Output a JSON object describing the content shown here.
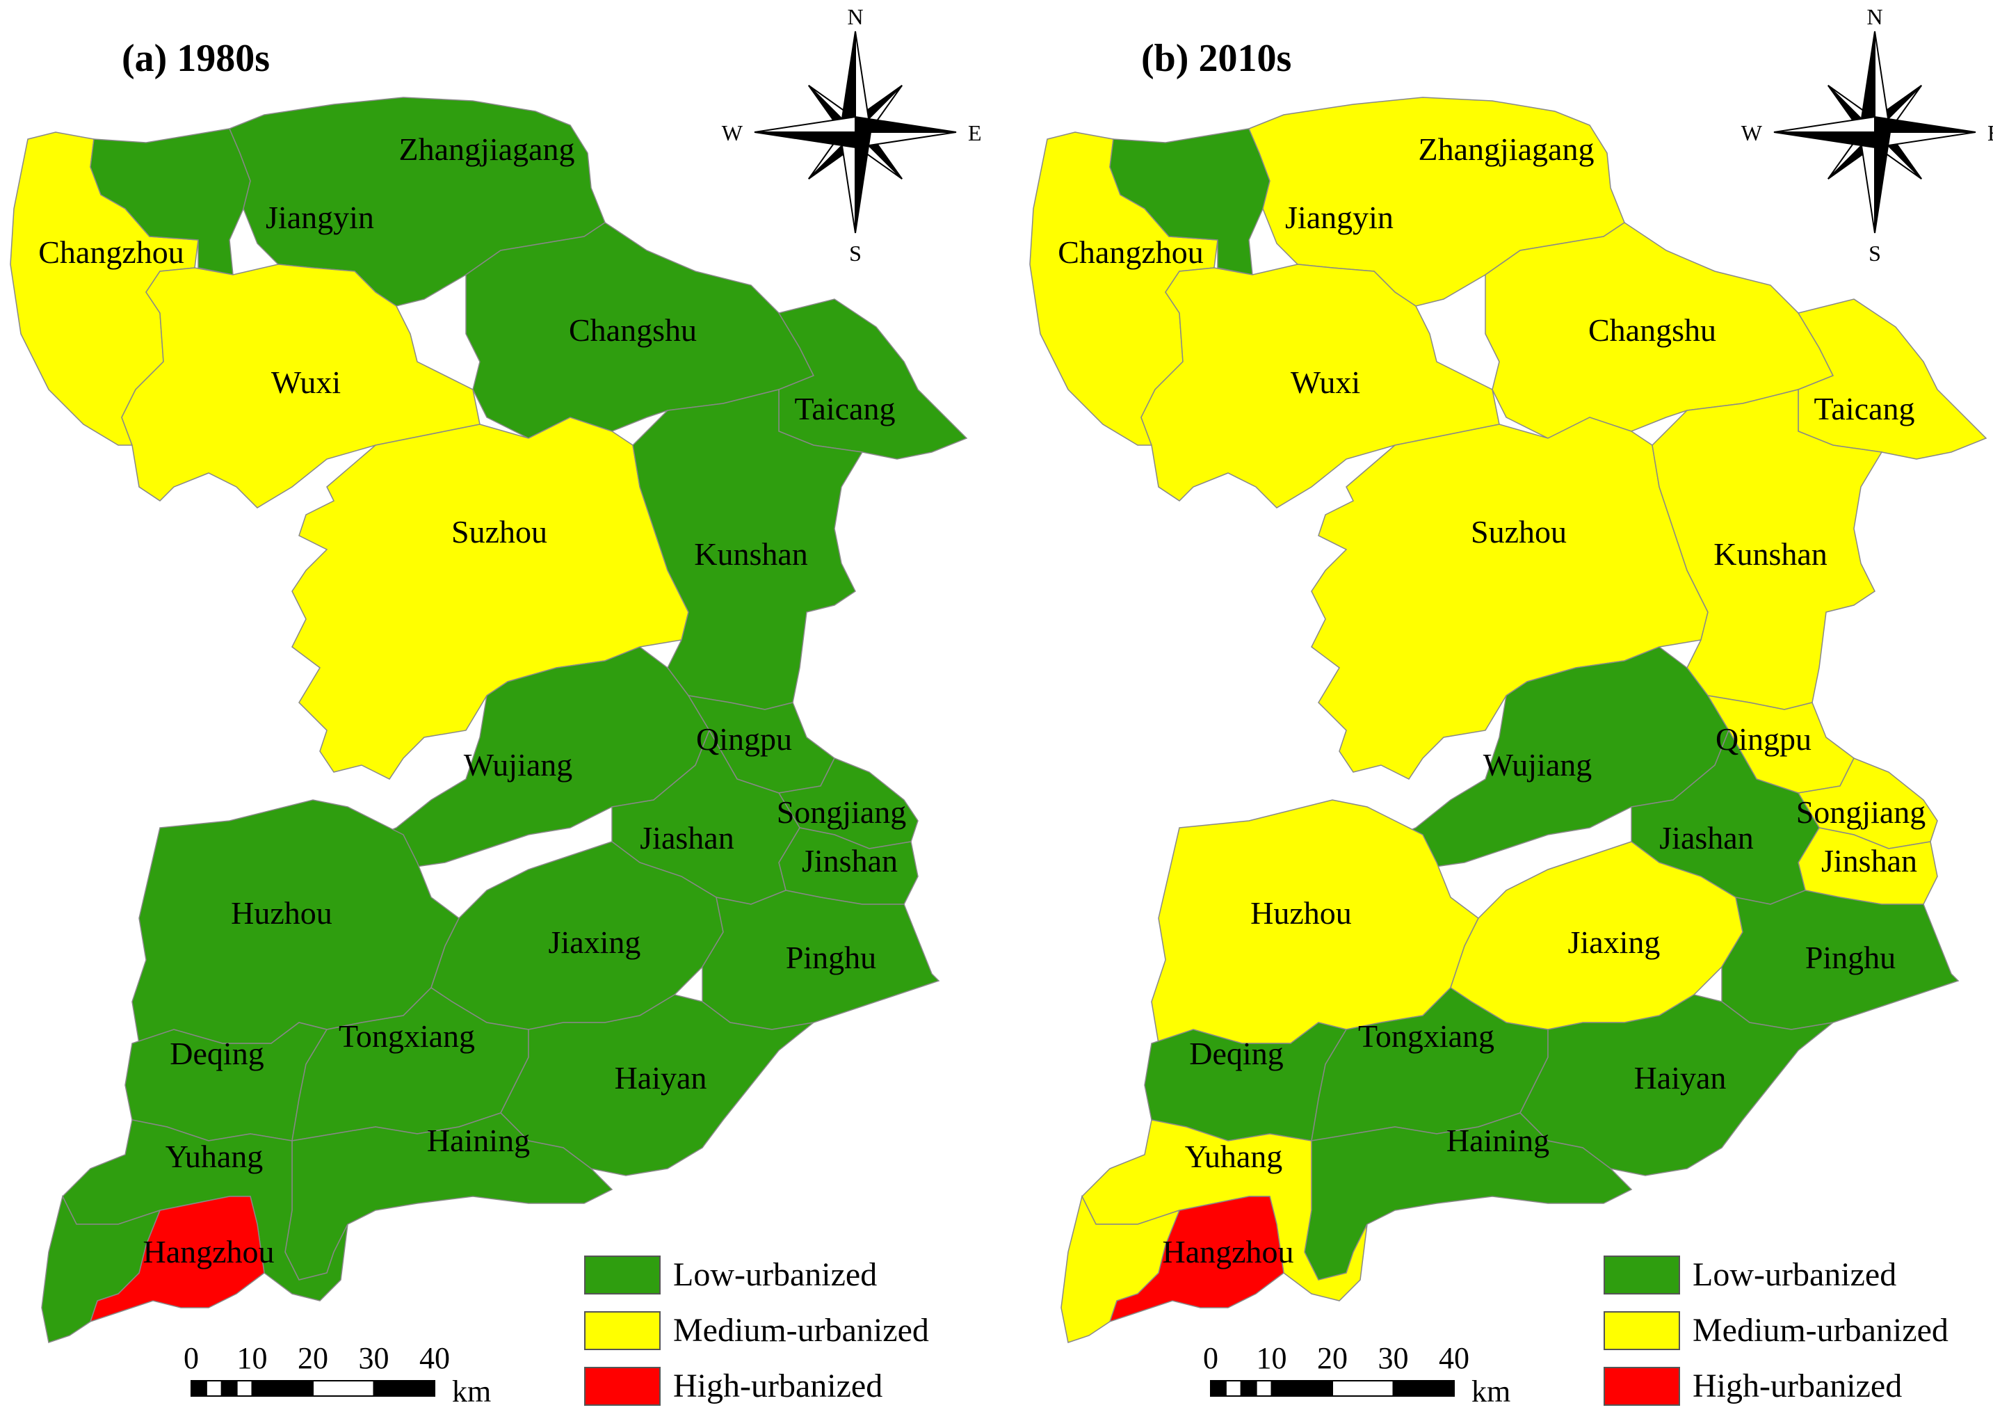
{
  "colors": {
    "low": "#2f9e0f",
    "medium": "#ffff00",
    "high": "#ff0000",
    "boundary": "#888888"
  },
  "legend": [
    {
      "label": "Low-urbanized",
      "class": "low"
    },
    {
      "label": "Medium-urbanized",
      "class": "medium"
    },
    {
      "label": "High-urbanized",
      "class": "high"
    }
  ],
  "scale": {
    "ticks": [
      "0",
      "10",
      "20",
      "30",
      "40"
    ],
    "unit": "km"
  },
  "compass": {
    "n": "N",
    "s": "S",
    "e": "E",
    "w": "W"
  },
  "panels": [
    {
      "title": "(a) 1980s",
      "regions": {
        "Changzhou": "medium",
        "Jiangyin": "low",
        "Zhangjiagang": "low",
        "Wuxi": "medium",
        "Changshu": "low",
        "Taicang": "low",
        "Suzhou": "medium",
        "Kunshan": "low",
        "Wujiang": "low",
        "Qingpu": "low",
        "Songjiang": "low",
        "Jinshan": "low",
        "Jiashan": "low",
        "Huzhou": "low",
        "Jiaxing": "low",
        "Pinghu": "low",
        "Deqing": "low",
        "Tongxiang": "low",
        "Haiyan": "low",
        "Haining": "low",
        "Yuhang": "low",
        "Hangzhou": "high"
      }
    },
    {
      "title": "(b) 2010s",
      "regions": {
        "Changzhou": "medium",
        "Jiangyin": "low",
        "Zhangjiagang": "medium",
        "Wuxi": "medium",
        "Changshu": "medium",
        "Taicang": "medium",
        "Suzhou": "medium",
        "Kunshan": "medium",
        "Wujiang": "low",
        "Qingpu": "medium",
        "Songjiang": "medium",
        "Jinshan": "medium",
        "Jiashan": "low",
        "Huzhou": "medium",
        "Jiaxing": "medium",
        "Pinghu": "low",
        "Deqing": "low",
        "Tongxiang": "low",
        "Haiyan": "low",
        "Haining": "low",
        "Yuhang": "medium",
        "Hangzhou": "high"
      }
    }
  ]
}
